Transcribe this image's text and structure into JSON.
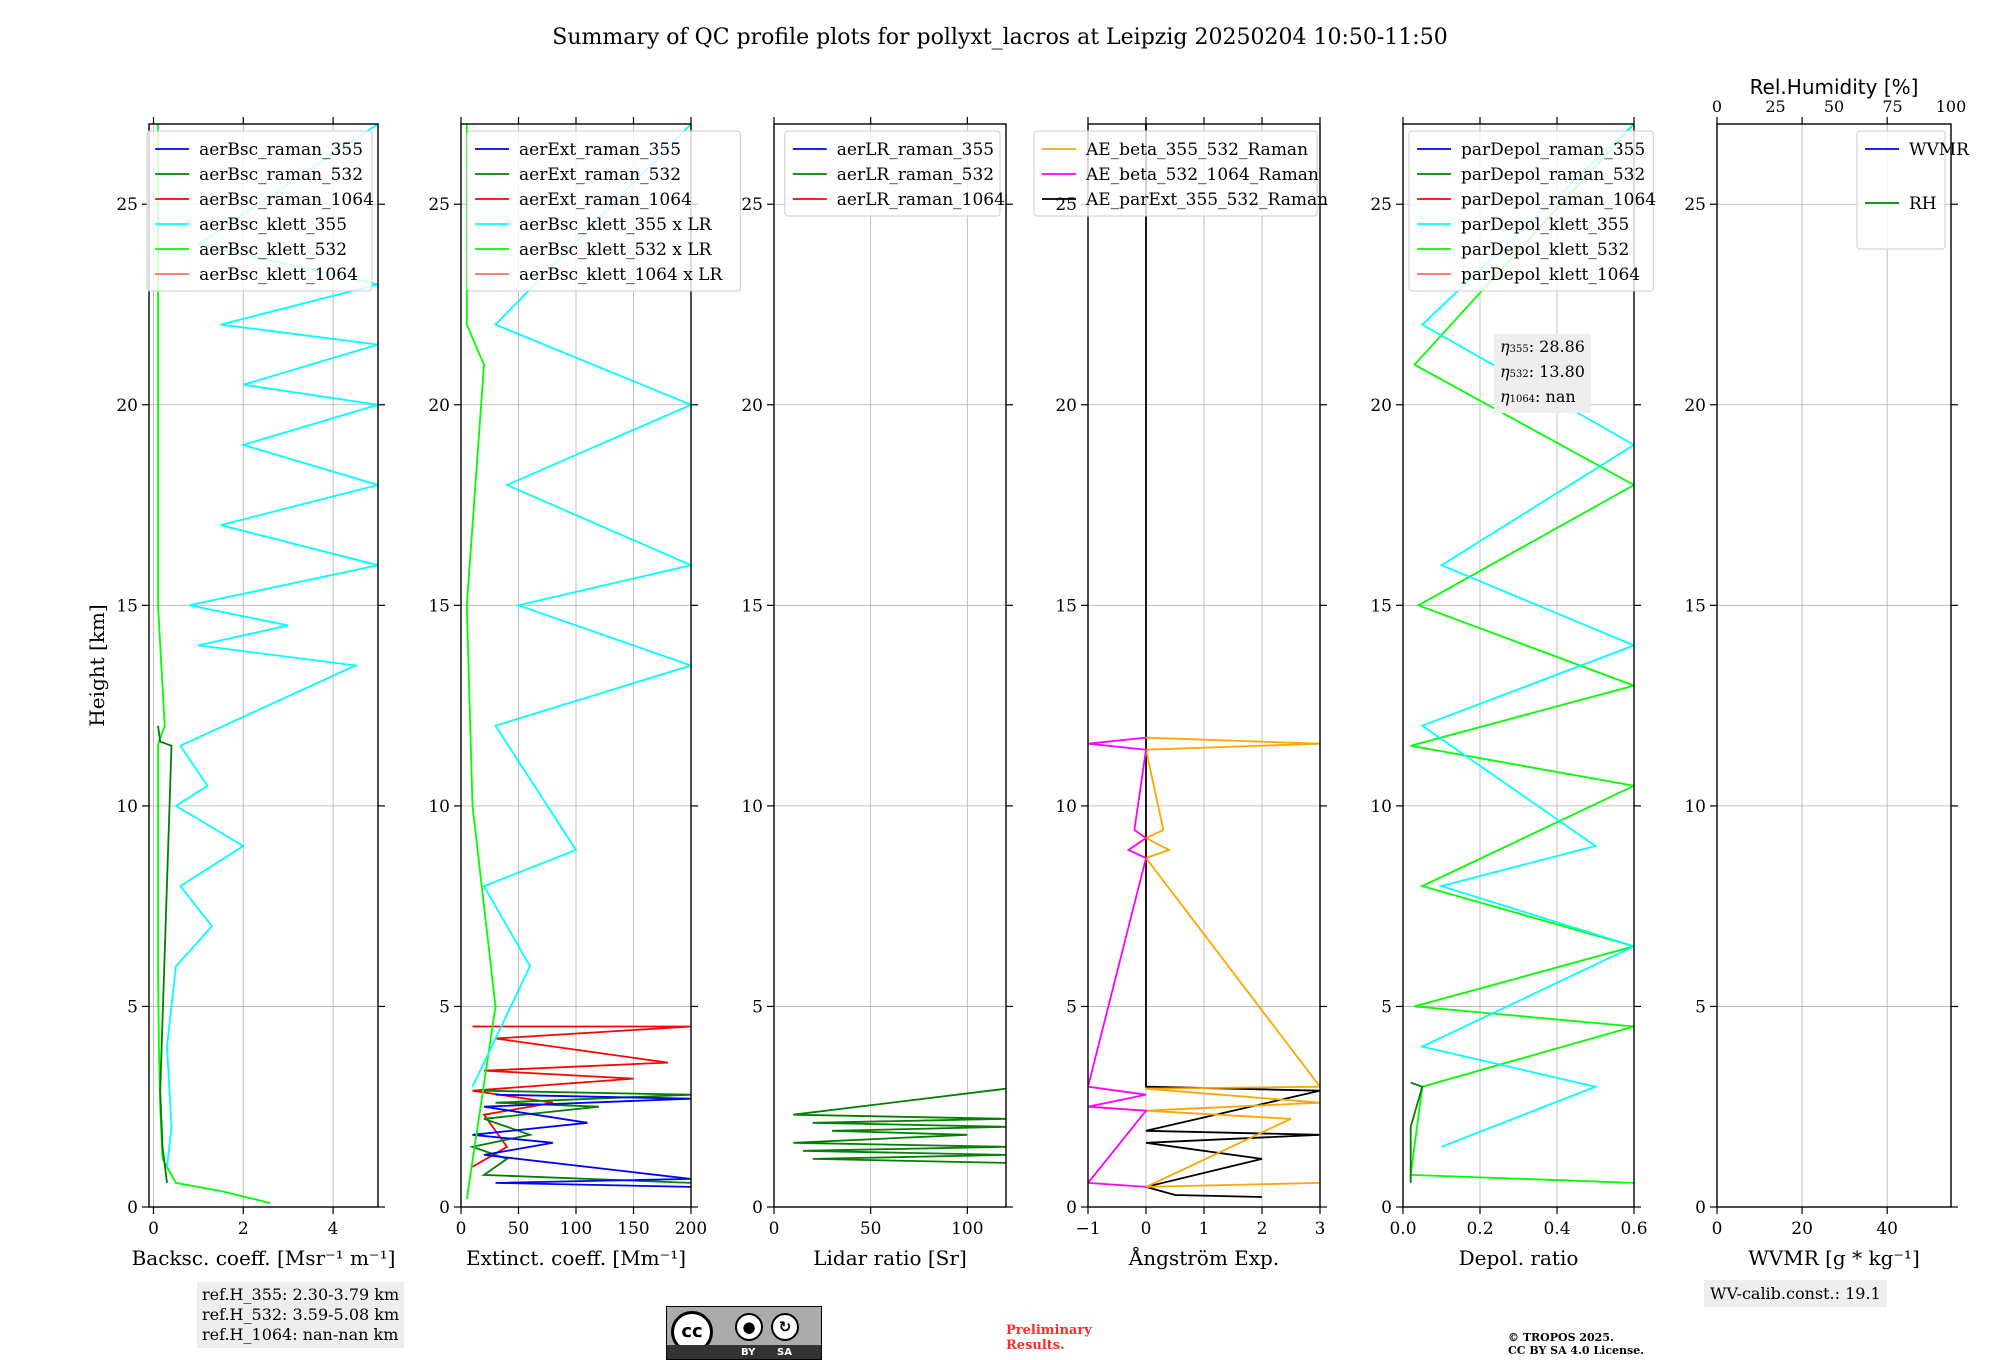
{
  "title": "Summary of QC profile plots for pollyxt_lacros at Leipzig 20250204 10:50-11:50",
  "colors": {
    "raman_355": "#0000ff",
    "raman_532": "#008000",
    "raman_1064": "#ff0000",
    "klett_355": "#00ffff",
    "klett_532": "#00ff00",
    "klett_1064": "#ff6b6b",
    "orange": "#ffa500",
    "magenta": "#ff00ff",
    "black": "#000000"
  },
  "chart_data": [
    {
      "type": "line",
      "xlabel": "Backsc. coeff. [Msr⁻¹ m⁻¹]",
      "ylabel": "Height [km]",
      "xlim": [
        -0.1,
        5
      ],
      "ylim": [
        0,
        27
      ],
      "xticks": [
        "0",
        "2",
        "4"
      ],
      "yticks": [
        "0",
        "5",
        "10",
        "15",
        "20",
        "25"
      ],
      "legend": [
        "aerBsc_raman_355",
        "aerBsc_raman_532",
        "aerBsc_raman_1064",
        "aerBsc_klett_355",
        "aerBsc_klett_532",
        "aerBsc_klett_1064"
      ],
      "legend_position": "top-right",
      "series": [
        {
          "name": "aerBsc_klett_532",
          "color_key": "klett_532",
          "x": [
            2.6,
            1.5,
            0.5,
            0.2,
            0.15,
            0.12,
            0.1,
            0.1,
            0.1,
            0.1,
            0.12,
            0.25,
            0.1,
            0.1,
            0.1,
            0.1
          ],
          "y": [
            0.1,
            0.4,
            0.6,
            1.2,
            2.5,
            4.0,
            6.0,
            8.0,
            10.0,
            11.5,
            11.6,
            12.0,
            15.0,
            20.0,
            21.0,
            27.0
          ]
        },
        {
          "name": "aerBsc_raman_532",
          "color_key": "raman_532",
          "x": [
            0.3,
            0.2,
            0.15,
            0.4,
            0.15,
            0.1
          ],
          "y": [
            0.6,
            1.5,
            2.9,
            11.5,
            11.6,
            12.0
          ]
        },
        {
          "name": "aerBsc_klett_355",
          "color_key": "klett_355",
          "x": [
            0.3,
            0.4,
            0.3,
            0.5,
            1.3,
            0.6,
            2.0,
            0.5,
            1.2,
            0.6,
            4.5,
            1.0,
            3.0,
            0.8,
            5,
            1.5,
            5,
            2,
            5,
            2,
            5,
            1.5,
            5,
            1,
            5
          ],
          "y": [
            1.0,
            2.0,
            4.0,
            6.0,
            7.0,
            8.0,
            9.0,
            10.0,
            10.5,
            11.5,
            13.5,
            14.0,
            14.5,
            15.0,
            16.0,
            17.0,
            18.0,
            19.0,
            20.0,
            20.5,
            21.5,
            22.0,
            23.0,
            24.0,
            27.0
          ]
        }
      ]
    },
    {
      "type": "line",
      "xlabel": "Extinct. coeff. [Mm⁻¹]",
      "xlim": [
        0,
        200
      ],
      "ylim": [
        0,
        27
      ],
      "xticks": [
        "0",
        "50",
        "100",
        "150",
        "200"
      ],
      "yticks": [
        "0",
        "5",
        "10",
        "15",
        "20",
        "25"
      ],
      "legend": [
        "aerExt_raman_355",
        "aerExt_raman_532",
        "aerExt_raman_1064",
        "aerBsc_klett_355 x LR",
        "aerBsc_klett_532 x LR",
        "aerBsc_klett_1064 x LR"
      ],
      "legend_position": "top-left",
      "series": [
        {
          "name": "aerExt_raman_1064",
          "color_key": "raman_1064",
          "x": [
            10,
            200,
            30,
            180,
            20,
            150,
            10,
            80,
            20,
            40,
            10
          ],
          "y": [
            4.5,
            4.5,
            4.2,
            3.6,
            3.4,
            3.2,
            2.9,
            2.6,
            2.3,
            1.5,
            1.0
          ]
        },
        {
          "name": "aerExt_raman_532",
          "color_key": "raman_532",
          "x": [
            20,
            200,
            30,
            120,
            20,
            60,
            10,
            40,
            20,
            200
          ],
          "y": [
            2.9,
            2.8,
            2.6,
            2.5,
            2.2,
            1.8,
            1.5,
            1.2,
            0.8,
            0.6
          ]
        },
        {
          "name": "aerExt_raman_355",
          "color_key": "raman_355",
          "x": [
            30,
            200,
            20,
            110,
            10,
            80,
            20,
            200,
            30,
            200
          ],
          "y": [
            2.8,
            2.7,
            2.5,
            2.1,
            1.8,
            1.6,
            1.3,
            0.7,
            0.6,
            0.5
          ]
        },
        {
          "name": "aerBsc_klett_532 x LR",
          "color_key": "klett_532",
          "x": [
            5,
            30,
            10,
            5,
            20,
            5,
            5
          ],
          "y": [
            0.2,
            5.0,
            10.0,
            15.0,
            21.0,
            22.0,
            27.0
          ]
        },
        {
          "name": "aerBsc_klett_355 x LR",
          "color_key": "klett_355",
          "x": [
            10,
            60,
            20,
            100,
            30,
            200,
            50,
            200,
            40,
            200,
            30,
            200
          ],
          "y": [
            3.0,
            6.0,
            8.0,
            8.9,
            12.0,
            13.5,
            15.0,
            16.0,
            18.0,
            20.0,
            22.0,
            27.0
          ]
        }
      ]
    },
    {
      "type": "line",
      "xlabel": "Lidar ratio [Sr]",
      "xlim": [
        0,
        120
      ],
      "ylim": [
        0,
        27
      ],
      "xticks": [
        "0",
        "50",
        "100"
      ],
      "yticks": [
        "0",
        "5",
        "10",
        "15",
        "20",
        "25"
      ],
      "legend": [
        "aerLR_raman_355",
        "aerLR_raman_532",
        "aerLR_raman_1064"
      ],
      "legend_position": "top-right",
      "series": [
        {
          "name": "aerLR_raman_532",
          "color_key": "raman_532",
          "x": [
            120,
            10,
            120,
            20,
            120,
            30,
            100,
            10,
            120,
            15,
            120,
            20,
            120
          ],
          "y": [
            2.95,
            2.3,
            2.2,
            2.1,
            2.0,
            1.9,
            1.8,
            1.6,
            1.5,
            1.4,
            1.3,
            1.2,
            1.1
          ]
        }
      ]
    },
    {
      "type": "line",
      "xlabel": "Ångström Exp.",
      "xlim": [
        -1,
        3
      ],
      "ylim": [
        0,
        27
      ],
      "xticks": [
        "−1",
        "0",
        "1",
        "2",
        "3"
      ],
      "yticks": [
        "0",
        "5",
        "10",
        "15",
        "20",
        "25"
      ],
      "legend": [
        "AE_beta_355_532_Raman",
        "AE_beta_532_1064_Raman",
        "AE_parExt_355_532_Raman"
      ],
      "legend_position": "top-left",
      "series": [
        {
          "name": "AE_parExt_355_532_Raman",
          "color_key": "black",
          "x": [
            0,
            0,
            3,
            0,
            3,
            0,
            2,
            0,
            0.5,
            2
          ],
          "y": [
            27,
            3.0,
            2.9,
            1.9,
            1.8,
            1.6,
            1.2,
            0.5,
            0.3,
            0.25
          ]
        },
        {
          "name": "AE_beta_355_532_Raman",
          "color_key": "orange",
          "x": [
            0,
            3,
            0,
            0.3,
            0,
            0.4,
            0,
            3,
            0,
            3,
            0,
            2.5,
            0,
            3
          ],
          "y": [
            11.7,
            11.55,
            11.4,
            9.4,
            9.2,
            8.9,
            8.7,
            3.0,
            2.95,
            2.6,
            2.4,
            2.2,
            0.5,
            0.6
          ]
        },
        {
          "name": "AE_beta_532_1064_Raman",
          "color_key": "magenta",
          "x": [
            0,
            -1,
            0,
            -0.2,
            0,
            -0.3,
            0,
            -1,
            0,
            -1,
            0,
            -1,
            0
          ],
          "y": [
            11.7,
            11.55,
            11.4,
            9.4,
            9.2,
            8.9,
            8.7,
            3.0,
            2.8,
            2.5,
            2.4,
            0.6,
            0.5
          ]
        }
      ]
    },
    {
      "type": "line",
      "xlabel": "Depol. ratio",
      "xlim": [
        0,
        0.6
      ],
      "ylim": [
        0,
        27
      ],
      "xticks": [
        "0.0",
        "0.2",
        "0.4",
        "0.6"
      ],
      "yticks": [
        "0",
        "5",
        "10",
        "15",
        "20",
        "25"
      ],
      "legend": [
        "parDepol_raman_355",
        "parDepol_raman_532",
        "parDepol_raman_1064",
        "parDepol_klett_355",
        "parDepol_klett_532",
        "parDepol_klett_1064"
      ],
      "legend_position": "top-left",
      "annotation": {
        "eta_355": "28.86",
        "eta_532": "13.80",
        "eta_1064": "nan"
      },
      "series": [
        {
          "name": "parDepol_klett_532",
          "color_key": "klett_532",
          "x": [
            0.6,
            0.02,
            0.05,
            0.6,
            0.03,
            0.6,
            0.05,
            0.6,
            0.02,
            0.6,
            0.04,
            0.6,
            0.03,
            0.6
          ],
          "y": [
            0.6,
            0.8,
            3.0,
            4.5,
            5.0,
            6.5,
            8.0,
            10.5,
            11.5,
            13.0,
            15.0,
            18.0,
            21.0,
            27.0
          ]
        },
        {
          "name": "parDepol_raman_532",
          "color_key": "raman_532",
          "x": [
            0.02,
            0.02,
            0.05,
            0.02
          ],
          "y": [
            0.6,
            2.0,
            3.0,
            3.1
          ]
        },
        {
          "name": "parDepol_klett_355",
          "color_key": "klett_355",
          "x": [
            0.1,
            0.5,
            0.05,
            0.6,
            0.1,
            0.5,
            0.05,
            0.6,
            0.1,
            0.6,
            0.05,
            0.6
          ],
          "y": [
            1.5,
            3.0,
            4.0,
            6.5,
            8.0,
            9.0,
            12.0,
            14.0,
            16.0,
            19.0,
            22.0,
            27.0
          ]
        }
      ]
    },
    {
      "type": "line",
      "xlabel": "WVMR [g * kg⁻¹]",
      "x2label": "Rel.Humidity [%]",
      "xlim": [
        0,
        55
      ],
      "x2lim": [
        0,
        100
      ],
      "ylim": [
        0,
        27
      ],
      "xticks": [
        "0",
        "20",
        "40"
      ],
      "x2ticks": [
        "0",
        "25",
        "50",
        "75",
        "100"
      ],
      "yticks": [
        "0",
        "5",
        "10",
        "15",
        "20",
        "25"
      ],
      "legend": [
        "WVMR",
        "RH"
      ],
      "legend_position": "top-right",
      "series": []
    }
  ],
  "annotations": {
    "ref_h_355": "ref.H_355: 2.30-3.79 km",
    "ref_h_532": "ref.H_532: 3.59-5.08 km",
    "ref_h_1064": "ref.H_1064: nan-nan km",
    "wv_calib": "WV-calib.const.: 19.1",
    "eta_355_label": "η",
    "eta_355_sub": "355",
    "eta_355_val": ": 28.86",
    "eta_532_label": "η",
    "eta_532_sub": "532",
    "eta_532_val": ": 13.80",
    "eta_1064_label": "η",
    "eta_1064_sub": "1064",
    "eta_1064_val": ": nan",
    "preliminary_1": "Preliminary",
    "preliminary_2": "Results.",
    "copyright_1": "© TROPOS 2025.",
    "copyright_2": "CC BY SA 4.0 License.",
    "cc_badge": {
      "cc": "cc",
      "by": "BY",
      "sa": "SA"
    }
  }
}
